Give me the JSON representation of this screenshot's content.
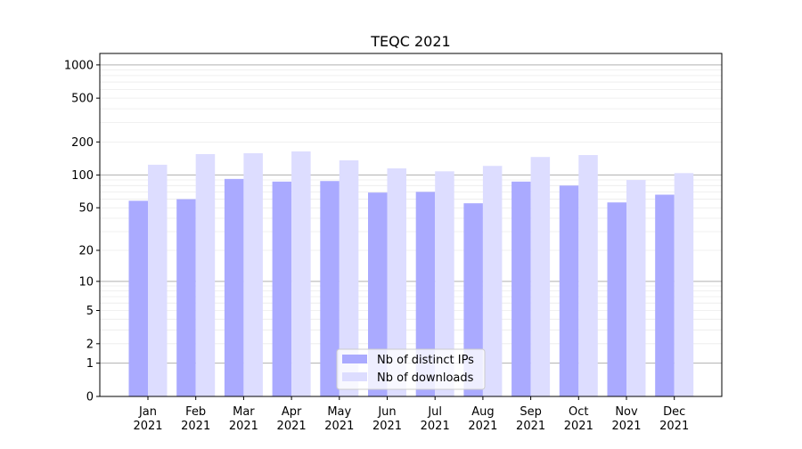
{
  "chart_data": {
    "type": "bar",
    "title": "TEQC 2021",
    "xlabel": "",
    "ylabel": "",
    "yscale": "log(1+y)",
    "ylim": [
      0,
      1270
    ],
    "yticks": [
      0,
      1,
      2,
      5,
      10,
      20,
      50,
      100,
      200,
      500,
      1000
    ],
    "grid": true,
    "legend_placement": "lower-center",
    "categories": [
      "Jan\n2021",
      "Feb\n2021",
      "Mar\n2021",
      "Apr\n2021",
      "May\n2021",
      "Jun\n2021",
      "Jul\n2021",
      "Aug\n2021",
      "Sep\n2021",
      "Oct\n2021",
      "Nov\n2021",
      "Dec\n2021"
    ],
    "series": [
      {
        "name": "Nb of distinct IPs",
        "color": "#aaaaff",
        "values": [
          58,
          60,
          92,
          87,
          88,
          69,
          70,
          55,
          87,
          80,
          56,
          66
        ]
      },
      {
        "name": "Nb of downloads",
        "color": "#ddddff",
        "values": [
          124,
          155,
          158,
          164,
          136,
          115,
          108,
          121,
          146,
          152,
          90,
          104
        ]
      }
    ]
  }
}
